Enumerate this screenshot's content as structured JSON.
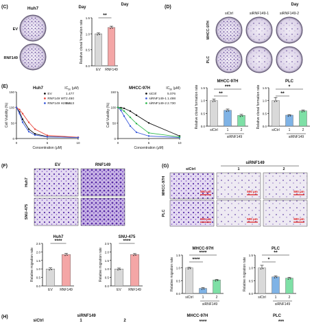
{
  "panelC": {
    "label": "(C)",
    "cell_line": "Huh7",
    "rows": [
      "EV",
      "RNF149"
    ],
    "day_label": "Day",
    "chart_data": {
      "type": "bar",
      "categories": [
        "EV",
        "RNF149"
      ],
      "values": [
        1.0,
        1.2
      ],
      "errors": [
        0.03,
        0.04
      ],
      "colors": [
        "#d9d9d9",
        "#f4a6a6"
      ],
      "ylabel": "Relative clonal formation rate",
      "ylim": [
        0,
        1.5
      ],
      "yticks": [
        "0.0",
        "0.5",
        "1.0",
        "1.5"
      ],
      "significance": "**"
    }
  },
  "panelD": {
    "label": "(D)",
    "day_label_left": "Day",
    "day_label_right": "Day",
    "columns": [
      "siCtrl",
      "siRNF149-1",
      "siRNF149-2"
    ],
    "rows": [
      "MHCC-97H",
      "PLC"
    ],
    "chart_left": {
      "type": "bar",
      "title": "MHCC-97H",
      "categories": [
        "siCtrl",
        "1",
        "2"
      ],
      "values": [
        1.0,
        0.62,
        0.42
      ],
      "errors": [
        0.06,
        0.05,
        0.04
      ],
      "colors": [
        "#d9d9d9",
        "#7fb3e6",
        "#7ee0a6"
      ],
      "ylabel": "Relative clonal formation rate",
      "ylim": [
        0,
        1.5
      ],
      "yticks": [
        "0.0",
        "0.5",
        "1.0",
        "1.5"
      ],
      "sig_top": "***",
      "sig_mid": "**",
      "group_label": "siRNF149"
    },
    "chart_right": {
      "type": "bar",
      "title": "PLC",
      "categories": [
        "siCtrl",
        "1",
        "2"
      ],
      "values": [
        1.0,
        0.43,
        0.6
      ],
      "errors": [
        0.12,
        0.02,
        0.03
      ],
      "colors": [
        "#d9d9d9",
        "#7fb3e6",
        "#7ee0a6"
      ],
      "ylabel": "Relative clonal formation rate",
      "ylim": [
        0,
        1.5
      ],
      "yticks": [
        "0.0",
        "0.5",
        "1.0",
        "1.5"
      ],
      "sig_top": "*",
      "sig_mid": "**",
      "group_label": "siRNF149"
    }
  },
  "panelE": {
    "label": "(E)",
    "left": {
      "title": "Huh7",
      "ic50_header": "IC",
      "ic50_sub": "50",
      "ic50_unit": " (μM)",
      "ylabel": "Cell Viability (%)",
      "xlabel": "Concentration (μM)",
      "xticks": [
        "0",
        "5",
        "10"
      ],
      "yticks": [
        "0",
        "50",
        "100",
        "150"
      ],
      "legend": [
        {
          "name": "EV",
          "value": "1.477",
          "color": "#111111"
        },
        {
          "name": "RNF149 WT",
          "value": "2.450",
          "color": "#e8453c"
        },
        {
          "name": "RNF149 H289A",
          "value": "1.213",
          "color": "#3b5bdb"
        }
      ]
    },
    "right": {
      "title": "MHCC-97H",
      "ic50_header": "IC",
      "ic50_sub": "50",
      "ic50_unit": " (μM)",
      "ylabel": "Cell Viability (%)",
      "xlabel": "Concentration (μM)",
      "xticks": [
        "0",
        "5",
        "10"
      ],
      "yticks": [
        "0",
        "50",
        "100",
        "150"
      ],
      "legend": [
        {
          "name": "siCtrl",
          "value": "5.076",
          "color": "#111111"
        },
        {
          "name": "siRNF149-1",
          "value": "1.498",
          "color": "#3b5bdb"
        },
        {
          "name": "siRNF149-2",
          "value": "2.730",
          "color": "#2fb84f"
        }
      ]
    },
    "chart_data": [
      {
        "type": "line",
        "title": "Huh7",
        "x": [
          0,
          0.5,
          1,
          2,
          3,
          5,
          10
        ],
        "series": [
          {
            "name": "EV",
            "values": [
              100,
              85,
              62,
              30,
              15,
              6,
              3
            ]
          },
          {
            "name": "RNF149 WT",
            "values": [
              100,
              93,
              80,
              52,
              30,
              10,
              4
            ]
          },
          {
            "name": "RNF149 H289A",
            "values": [
              100,
              80,
              52,
              22,
              11,
              5,
              3
            ]
          }
        ]
      },
      {
        "type": "line",
        "title": "MHCC-97H",
        "x": [
          0,
          0.5,
          1,
          2,
          3,
          5,
          10
        ],
        "series": [
          {
            "name": "siCtrl",
            "values": [
              100,
              99,
              97,
              88,
              75,
              50,
              8
            ]
          },
          {
            "name": "siRNF149-1",
            "values": [
              100,
              90,
              72,
              40,
              20,
              8,
              3
            ]
          },
          {
            "name": "siRNF149-2",
            "values": [
              100,
              96,
              88,
              68,
              48,
              18,
              5
            ]
          }
        ]
      }
    ]
  },
  "panelF": {
    "label": "(F)",
    "columns": [
      "EV",
      "RNF149"
    ],
    "rows": [
      "Huh7",
      "SNU-475"
    ],
    "chart_left": {
      "type": "bar",
      "title": "Huh7",
      "categories": [
        "EV",
        "RNF149"
      ],
      "values": [
        1.0,
        1.85
      ],
      "errors": [
        0.06,
        0.06
      ],
      "colors": [
        "#d9d9d9",
        "#f4a6a6"
      ],
      "ylabel": "Relative migration rate",
      "ylim": [
        0,
        2.5
      ],
      "yticks": [
        "0.0",
        "0.5",
        "1.0",
        "1.5",
        "2.0",
        "2.5"
      ],
      "significance": "****"
    },
    "chart_right": {
      "type": "bar",
      "title": "SNU-475",
      "categories": [
        "EV",
        "RNF149"
      ],
      "values": [
        1.0,
        1.85
      ],
      "errors": [
        0.05,
        0.05
      ],
      "colors": [
        "#d9d9d9",
        "#f4a6a6"
      ],
      "ylabel": "Relative migration rate",
      "ylim": [
        0,
        2.5
      ],
      "yticks": [
        "0.0",
        "0.5",
        "1.0",
        "1.5",
        "2.0",
        "2.5"
      ],
      "significance": "****"
    }
  },
  "panelG": {
    "label": "(G)",
    "header": "siRNF149",
    "columns": [
      "siCtrl",
      "1",
      "2"
    ],
    "rows": [
      "MHCC-97H",
      "PLC"
    ],
    "scale": "500 μm",
    "chart_left": {
      "type": "bar",
      "title": "MHCC-97H",
      "categories": [
        "siCtrl",
        "1",
        "2"
      ],
      "values": [
        1.0,
        0.2,
        0.53
      ],
      "errors": [
        0.02,
        0.03,
        0.02
      ],
      "colors": [
        "#d9d9d9",
        "#7fb3e6",
        "#7ee0a6"
      ],
      "ylabel": "Relative migration rate",
      "ylim": [
        0,
        1.5
      ],
      "yticks": [
        "0.0",
        "0.5",
        "1.0",
        "1.5"
      ],
      "sig_top": "****",
      "sig_mid": "****",
      "group_label": "siRNF149"
    },
    "chart_right": {
      "type": "bar",
      "title": "PLC",
      "categories": [
        "siCtrl",
        "1",
        "2"
      ],
      "values": [
        1.0,
        0.65,
        0.6
      ],
      "errors": [
        0.1,
        0.04,
        0.03
      ],
      "colors": [
        "#d9d9d9",
        "#7fb3e6",
        "#7ee0a6"
      ],
      "ylabel": "Relative migration rate",
      "ylim": [
        0,
        1.5
      ],
      "yticks": [
        "0.0",
        "0.5",
        "1.0",
        "1.5"
      ],
      "sig_top": "**",
      "sig_mid": "*",
      "group_label": "siRNF149"
    }
  },
  "panelH": {
    "label": "(H)",
    "col_sictrl": "siCtrl",
    "header": "siRNF149",
    "col1": "1",
    "col2": "2",
    "title_left": "MHCC-97H",
    "title_right": "PLC",
    "stars_left": "****",
    "stars_right": "***"
  }
}
